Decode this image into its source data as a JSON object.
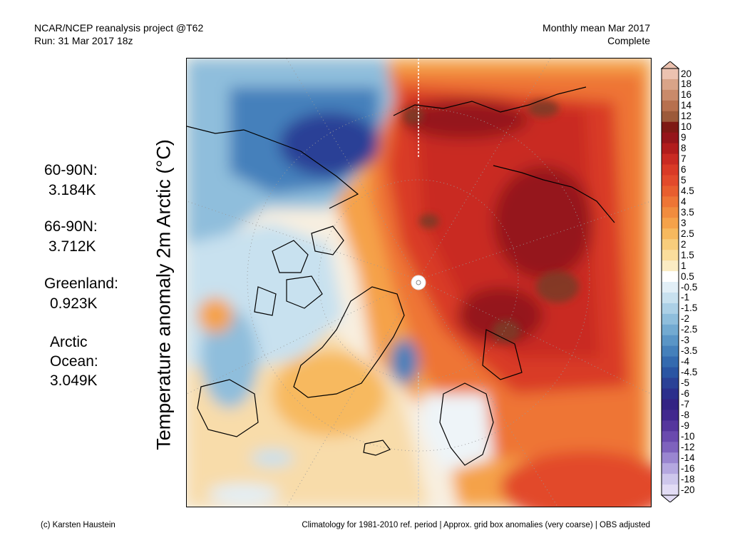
{
  "header": {
    "left_line1": "NCAR/NCEP reanalysis project @T62",
    "left_line2": "Run: 31 Mar 2017 18z",
    "right_line1": "Monthly mean Mar 2017",
    "right_line2": "Complete"
  },
  "y_axis_label": "Temperature anomaly 2m Arctic (°C)",
  "stats": [
    {
      "label": "60-90N:",
      "value": "3.184K"
    },
    {
      "label": "66-90N:",
      "value": "3.712K"
    },
    {
      "label": "Greenland:",
      "value": "0.923K"
    },
    {
      "label_line1": "Arctic",
      "label_line2": "Ocean:",
      "value": "3.049K"
    }
  ],
  "footer": {
    "credit": "(c) Karsten Haustein",
    "note": "Climatology for 1981-2010 ref. period | Approx. grid box anomalies (very coarse) | OBS adjusted"
  },
  "colorbar": {
    "labels": [
      "20",
      "18",
      "16",
      "14",
      "12",
      "10",
      "9",
      "8",
      "7",
      "6",
      "5",
      "4.5",
      "4",
      "3.5",
      "3",
      "2.5",
      "2",
      "1.5",
      "1",
      "0.5",
      "-0.5",
      "-1",
      "-1.5",
      "-2",
      "-2.5",
      "-3",
      "-3.5",
      "-4",
      "-4.5",
      "-5",
      "-6",
      "-7",
      "-8",
      "-9",
      "-10",
      "-12",
      "-14",
      "-16",
      "-18",
      "-20"
    ],
    "colors": [
      "#ecc2b0",
      "#d9a488",
      "#c98a6a",
      "#b7704e",
      "#9c5a3a",
      "#7e1a14",
      "#95151a",
      "#b11c1c",
      "#c92a22",
      "#d93a26",
      "#e24a2b",
      "#e85e2e",
      "#ee7535",
      "#f18c3e",
      "#f5a24a",
      "#f7b95e",
      "#f8cd7c",
      "#fadd9c",
      "#fbecc4",
      "#ffffff",
      "#e2eff7",
      "#c8e1ef",
      "#acd0e6",
      "#8fbedc",
      "#73aad1",
      "#5a95c6",
      "#4580bb",
      "#346aaf",
      "#2a55a3",
      "#2a4196",
      "#2b2f8c",
      "#332384",
      "#41288e",
      "#55369d",
      "#6a4aae",
      "#7e62bd",
      "#9a86d0",
      "#b5a8e0",
      "#cec7ec",
      "#e2dcf5"
    ]
  },
  "map": {
    "title": "Arctic 2m temperature anomaly map",
    "pole_marker": "north-pole"
  }
}
